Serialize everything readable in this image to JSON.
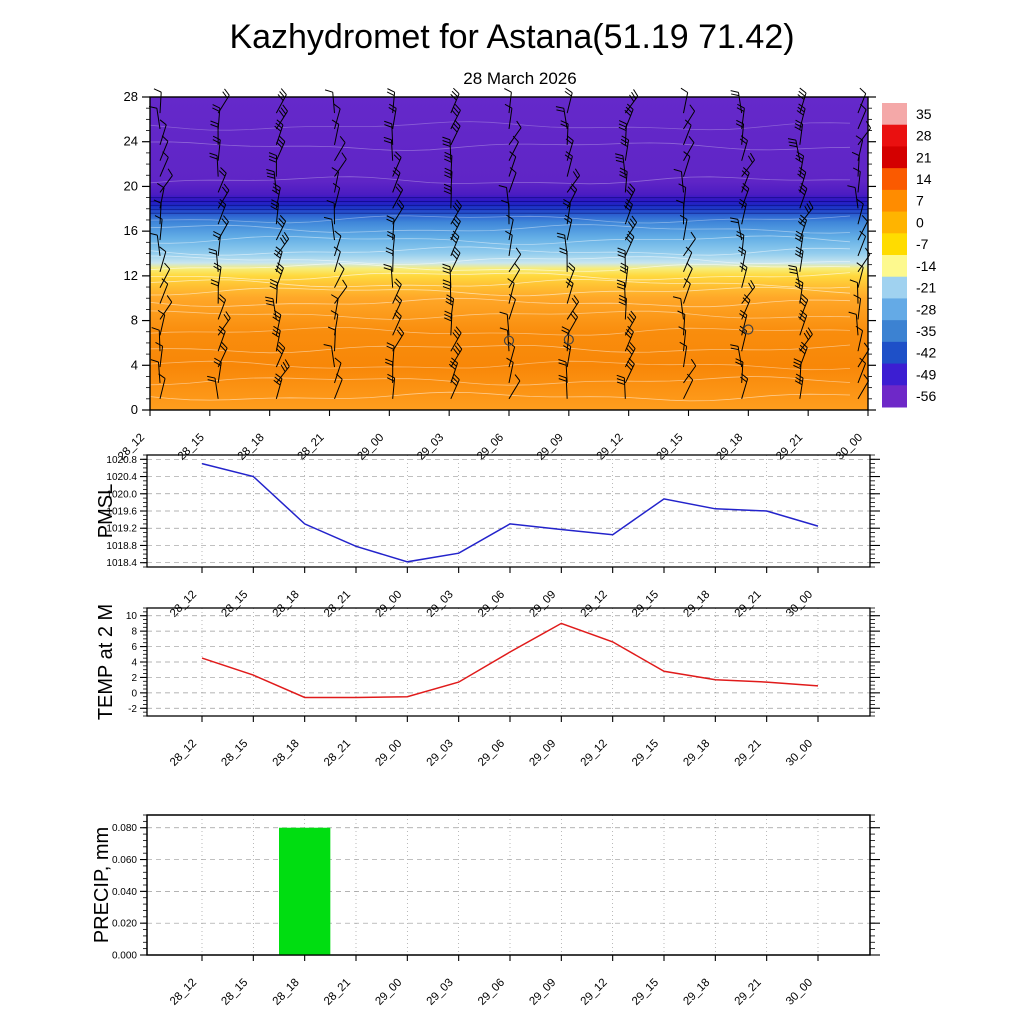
{
  "title": "Kazhydromet for Astana(51.19 71.42)",
  "subtitle": "28 March 2026",
  "time_labels": [
    "28_12",
    "28_15",
    "28_18",
    "28_21",
    "29_00",
    "29_03",
    "29_06",
    "29_09",
    "29_12",
    "29_15",
    "29_18",
    "29_21",
    "30_00"
  ],
  "colorbar": {
    "labels": [
      "35",
      "28",
      "21",
      "14",
      "7",
      "0",
      "-7",
      "-14",
      "-21",
      "-28",
      "-35",
      "-42",
      "-49",
      "-56"
    ],
    "colors": [
      "#f4a8a8",
      "#ea1010",
      "#d40000",
      "#fa5a00",
      "#ff8c00",
      "#ffb400",
      "#ffdc00",
      "#fdf98e",
      "#a0d2f0",
      "#64aae6",
      "#3c82d2",
      "#1e50c8",
      "#3c1ed2",
      "#6e28c8"
    ]
  },
  "chart_data": [
    {
      "type": "heatmap",
      "name": "temperature-height-cross-section-with-wind-barbs",
      "x": [
        "28_12",
        "28_15",
        "28_18",
        "28_21",
        "29_00",
        "29_03",
        "29_06",
        "29_09",
        "29_12",
        "29_15",
        "29_18",
        "29_21",
        "30_00"
      ],
      "ylim": [
        0,
        28
      ],
      "yticks": [
        0,
        4,
        8,
        12,
        16,
        20,
        24,
        28
      ],
      "gradient_stops": [
        [
          0.0,
          "#ff9e1e"
        ],
        [
          0.14,
          "#f88708"
        ],
        [
          0.25,
          "#f98d0d"
        ],
        [
          0.357,
          "#ffa728"
        ],
        [
          0.393,
          "#ffbe32"
        ],
        [
          0.429,
          "#ffd93e"
        ],
        [
          0.452,
          "#f7ed7a"
        ],
        [
          0.47,
          "#c9e6ef"
        ],
        [
          0.5,
          "#93cdee"
        ],
        [
          0.55,
          "#64afe6"
        ],
        [
          0.6,
          "#3f86d9"
        ],
        [
          0.625,
          "#2b5ed0"
        ],
        [
          0.65,
          "#1c2fc6"
        ],
        [
          0.668,
          "#2a17c4"
        ],
        [
          0.69,
          "#4c1cc2"
        ],
        [
          0.73,
          "#5f25c6"
        ],
        [
          1.0,
          "#6529ca"
        ]
      ],
      "wind_barbs": {
        "columns": 13,
        "rows": 19
      },
      "markers": [
        {
          "x": "29_06",
          "y": 6.2
        },
        {
          "x": "29_09",
          "y": 6.3
        },
        {
          "x": "29_18",
          "y": 7.2
        }
      ]
    },
    {
      "type": "line",
      "title": "PMSL",
      "color": "#2323cb",
      "x": [
        "28_12",
        "28_15",
        "28_18",
        "28_21",
        "29_00",
        "29_03",
        "29_06",
        "29_09",
        "29_12",
        "29_15",
        "29_18",
        "29_21",
        "30_00"
      ],
      "values": [
        1020.7,
        1020.4,
        1019.3,
        1018.78,
        1018.42,
        1018.62,
        1019.3,
        1019.17,
        1019.05,
        1019.88,
        1019.65,
        1019.6,
        1019.25
      ],
      "ylim": [
        1018.3,
        1020.9
      ],
      "yticks": [
        1020.8,
        1020.4,
        1020.0,
        1019.6,
        1019.2,
        1018.8,
        1018.4
      ],
      "ytick_labels": [
        "1020.8",
        "1020.4",
        "1020.0",
        "1019.6",
        "1019.2",
        "1018.8",
        "1018.4"
      ],
      "yminor": 0.1
    },
    {
      "type": "line",
      "title": "TEMP at 2 M",
      "color": "#e01b1b",
      "x": [
        "28_12",
        "28_15",
        "28_18",
        "28_21",
        "29_00",
        "29_03",
        "29_06",
        "29_09",
        "29_12",
        "29_15",
        "29_18",
        "29_21",
        "30_00"
      ],
      "values": [
        4.5,
        2.3,
        -0.6,
        -0.6,
        -0.5,
        1.4,
        5.3,
        9.0,
        6.6,
        2.8,
        1.7,
        1.4,
        0.9
      ],
      "ylim": [
        -3,
        11
      ],
      "yticks": [
        10,
        8,
        6,
        4,
        2,
        0,
        -2
      ],
      "ytick_labels": [
        "10",
        "8",
        "6",
        "4",
        "2",
        "0",
        "-2"
      ],
      "yminor": 0.5
    },
    {
      "type": "bar",
      "title": "PRECIP, mm",
      "color": "#00dd11",
      "x": [
        "28_12",
        "28_15",
        "28_18",
        "28_21",
        "29_00",
        "29_03",
        "29_06",
        "29_09",
        "29_12",
        "29_15",
        "29_18",
        "29_21",
        "30_00"
      ],
      "values": [
        0,
        0,
        0.08,
        0,
        0,
        0,
        0,
        0,
        0,
        0,
        0,
        0,
        0
      ],
      "ylim": [
        0,
        0.088
      ],
      "yticks": [
        0.08,
        0.06,
        0.04,
        0.02,
        0
      ],
      "ytick_labels": [
        "0.080",
        "0.060",
        "0.040",
        "0.020",
        "0.000"
      ],
      "yminor": 0.004
    }
  ]
}
